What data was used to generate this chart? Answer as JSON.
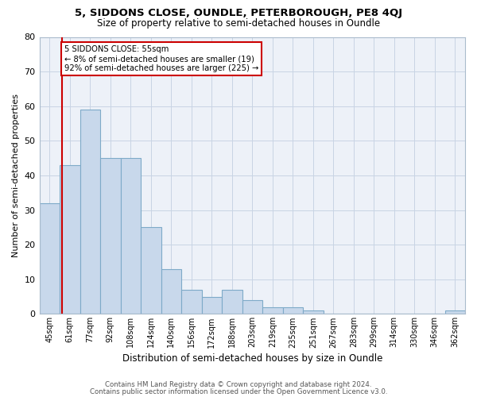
{
  "title_line1": "5, SIDDONS CLOSE, OUNDLE, PETERBOROUGH, PE8 4QJ",
  "title_line2": "Size of property relative to semi-detached houses in Oundle",
  "xlabel": "Distribution of semi-detached houses by size in Oundle",
  "ylabel": "Number of semi-detached properties",
  "categories": [
    "45sqm",
    "61sqm",
    "77sqm",
    "92sqm",
    "108sqm",
    "124sqm",
    "140sqm",
    "156sqm",
    "172sqm",
    "188sqm",
    "203sqm",
    "219sqm",
    "235sqm",
    "251sqm",
    "267sqm",
    "283sqm",
    "299sqm",
    "314sqm",
    "330sqm",
    "346sqm",
    "362sqm"
  ],
  "values": [
    32,
    43,
    59,
    45,
    45,
    25,
    13,
    7,
    5,
    7,
    4,
    2,
    2,
    1,
    0,
    0,
    0,
    0,
    0,
    0,
    1
  ],
  "bar_color": "#c8d8eb",
  "bar_edgecolor": "#7eaac8",
  "grid_color": "#c8d4e4",
  "bg_color": "#edf1f8",
  "property_line_x": 0.625,
  "annotation_title": "5 SIDDONS CLOSE: 55sqm",
  "annotation_line1": "← 8% of semi-detached houses are smaller (19)",
  "annotation_line2": "92% of semi-detached houses are larger (225) →",
  "annotation_box_color": "#ffffff",
  "annotation_border_color": "#cc0000",
  "vline_color": "#cc0000",
  "footer1": "Contains HM Land Registry data © Crown copyright and database right 2024.",
  "footer2": "Contains public sector information licensed under the Open Government Licence v3.0.",
  "ylim": [
    0,
    80
  ],
  "yticks": [
    0,
    10,
    20,
    30,
    40,
    50,
    60,
    70,
    80
  ]
}
